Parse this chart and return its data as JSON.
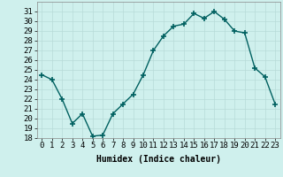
{
  "title": "",
  "xlabel": "Humidex (Indice chaleur)",
  "x": [
    0,
    1,
    2,
    3,
    4,
    5,
    6,
    7,
    8,
    9,
    10,
    11,
    12,
    13,
    14,
    15,
    16,
    17,
    18,
    19,
    20,
    21,
    22,
    23
  ],
  "y": [
    24.5,
    24.0,
    22.0,
    19.5,
    20.5,
    18.2,
    18.3,
    20.5,
    21.5,
    22.5,
    24.5,
    27.0,
    28.5,
    29.5,
    29.7,
    30.8,
    30.3,
    31.0,
    30.2,
    29.0,
    28.8,
    25.2,
    24.3,
    21.5
  ],
  "line_color": "#006060",
  "marker": "+",
  "marker_size": 4,
  "marker_lw": 1.2,
  "bg_color": "#cff0ed",
  "grid_color": "#b8dbd8",
  "ylim": [
    18,
    32
  ],
  "yticks": [
    18,
    19,
    20,
    21,
    22,
    23,
    24,
    25,
    26,
    27,
    28,
    29,
    30,
    31
  ],
  "axis_fontsize": 6.5,
  "label_fontsize": 7,
  "linewidth": 1.0
}
